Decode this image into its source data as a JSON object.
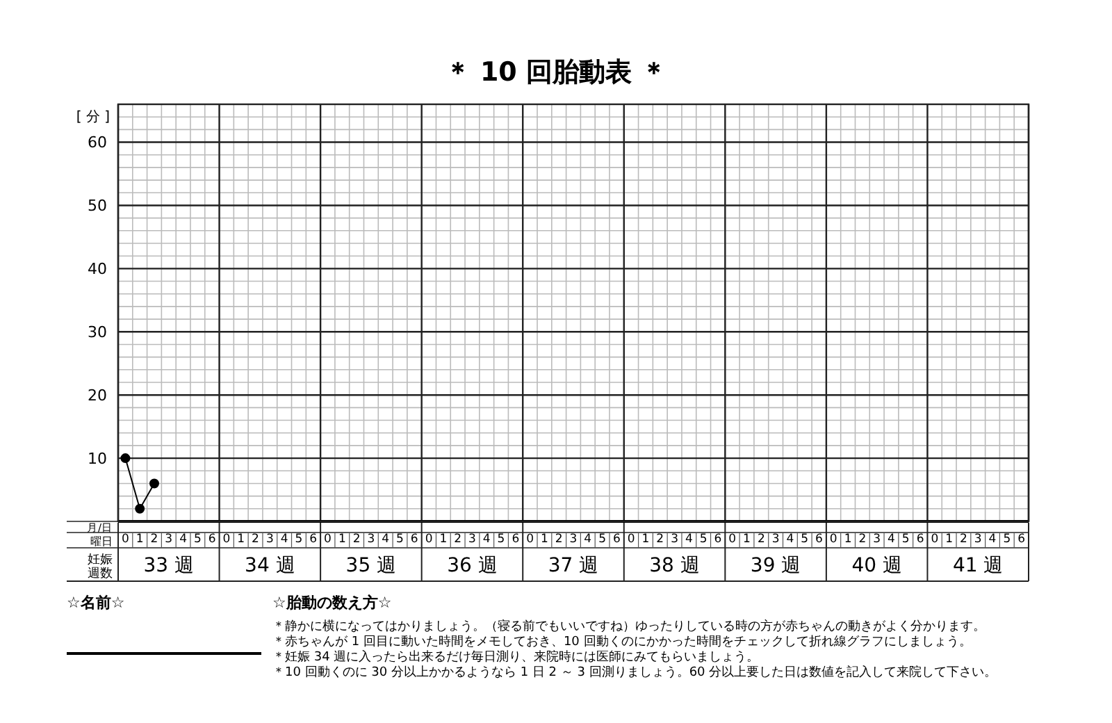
{
  "chart_data": {
    "type": "line",
    "title": "＊ 10 回胎動表 ＊",
    "ylabel": "[ 分 ]",
    "xlabel": "曜日",
    "categories": [
      "0",
      "1",
      "2",
      "3",
      "4",
      "5",
      "6",
      "0",
      "1",
      "2",
      "3",
      "4",
      "5",
      "6",
      "0",
      "1",
      "2",
      "3",
      "4",
      "5",
      "6",
      "0",
      "1",
      "2",
      "3",
      "4",
      "5",
      "6",
      "0",
      "1",
      "2",
      "3",
      "4",
      "5",
      "6",
      "0",
      "1",
      "2",
      "3",
      "4",
      "5",
      "6",
      "0",
      "1",
      "2",
      "3",
      "4",
      "5",
      "6",
      "0",
      "1",
      "2",
      "3",
      "4",
      "5",
      "6",
      "0",
      "1",
      "2",
      "3",
      "4",
      "5",
      "6"
    ],
    "series": [
      {
        "color": "#000000",
        "values": [
          10,
          2,
          6,
          null,
          null,
          null,
          null,
          null,
          null,
          null,
          null,
          null,
          null,
          null,
          null,
          null,
          null,
          null,
          null,
          null,
          null,
          null,
          null,
          null,
          null,
          null,
          null,
          null,
          null,
          null,
          null,
          null,
          null,
          null,
          null,
          null,
          null,
          null,
          null,
          null,
          null,
          null,
          null,
          null,
          null,
          null,
          null,
          null,
          null,
          null,
          null,
          null,
          null,
          null,
          null,
          null,
          null,
          null,
          null,
          null,
          null,
          null,
          null
        ]
      }
    ],
    "ylim": [
      0,
      66
    ],
    "yticks": [
      10,
      20,
      30,
      40,
      50,
      60
    ],
    "grid": true,
    "marker": "circle",
    "line_style": "solid",
    "annotations": [
      "月/日",
      "妊娠週数",
      "33 週",
      "34 週",
      "35 週",
      "36 週",
      "37 週",
      "38 週",
      "39 週",
      "40 週",
      "41 週",
      "☆名前☆",
      "☆胎動の数え方☆",
      "＊静かに横になってはかりましょう。（寝る前でもいいですね）ゆったりしている時の方が赤ちゃんの動きがよく分かります。",
      "＊赤ちゃんが 1 回目に動いた時間をメモしておき、10 回動くのにかかった時間をチェックして折れ線グラフにしましょう。",
      "＊妊娠 34 週に入ったら出来るだけ毎日測り、来院時には医師にみてもらいましょう。",
      "＊10 回動くのに 30 分以上かかるようなら 1 日 2 ～ 3 回測りましょう。60 分以上要した日は数値を記入して来院して下さい。"
    ]
  }
}
